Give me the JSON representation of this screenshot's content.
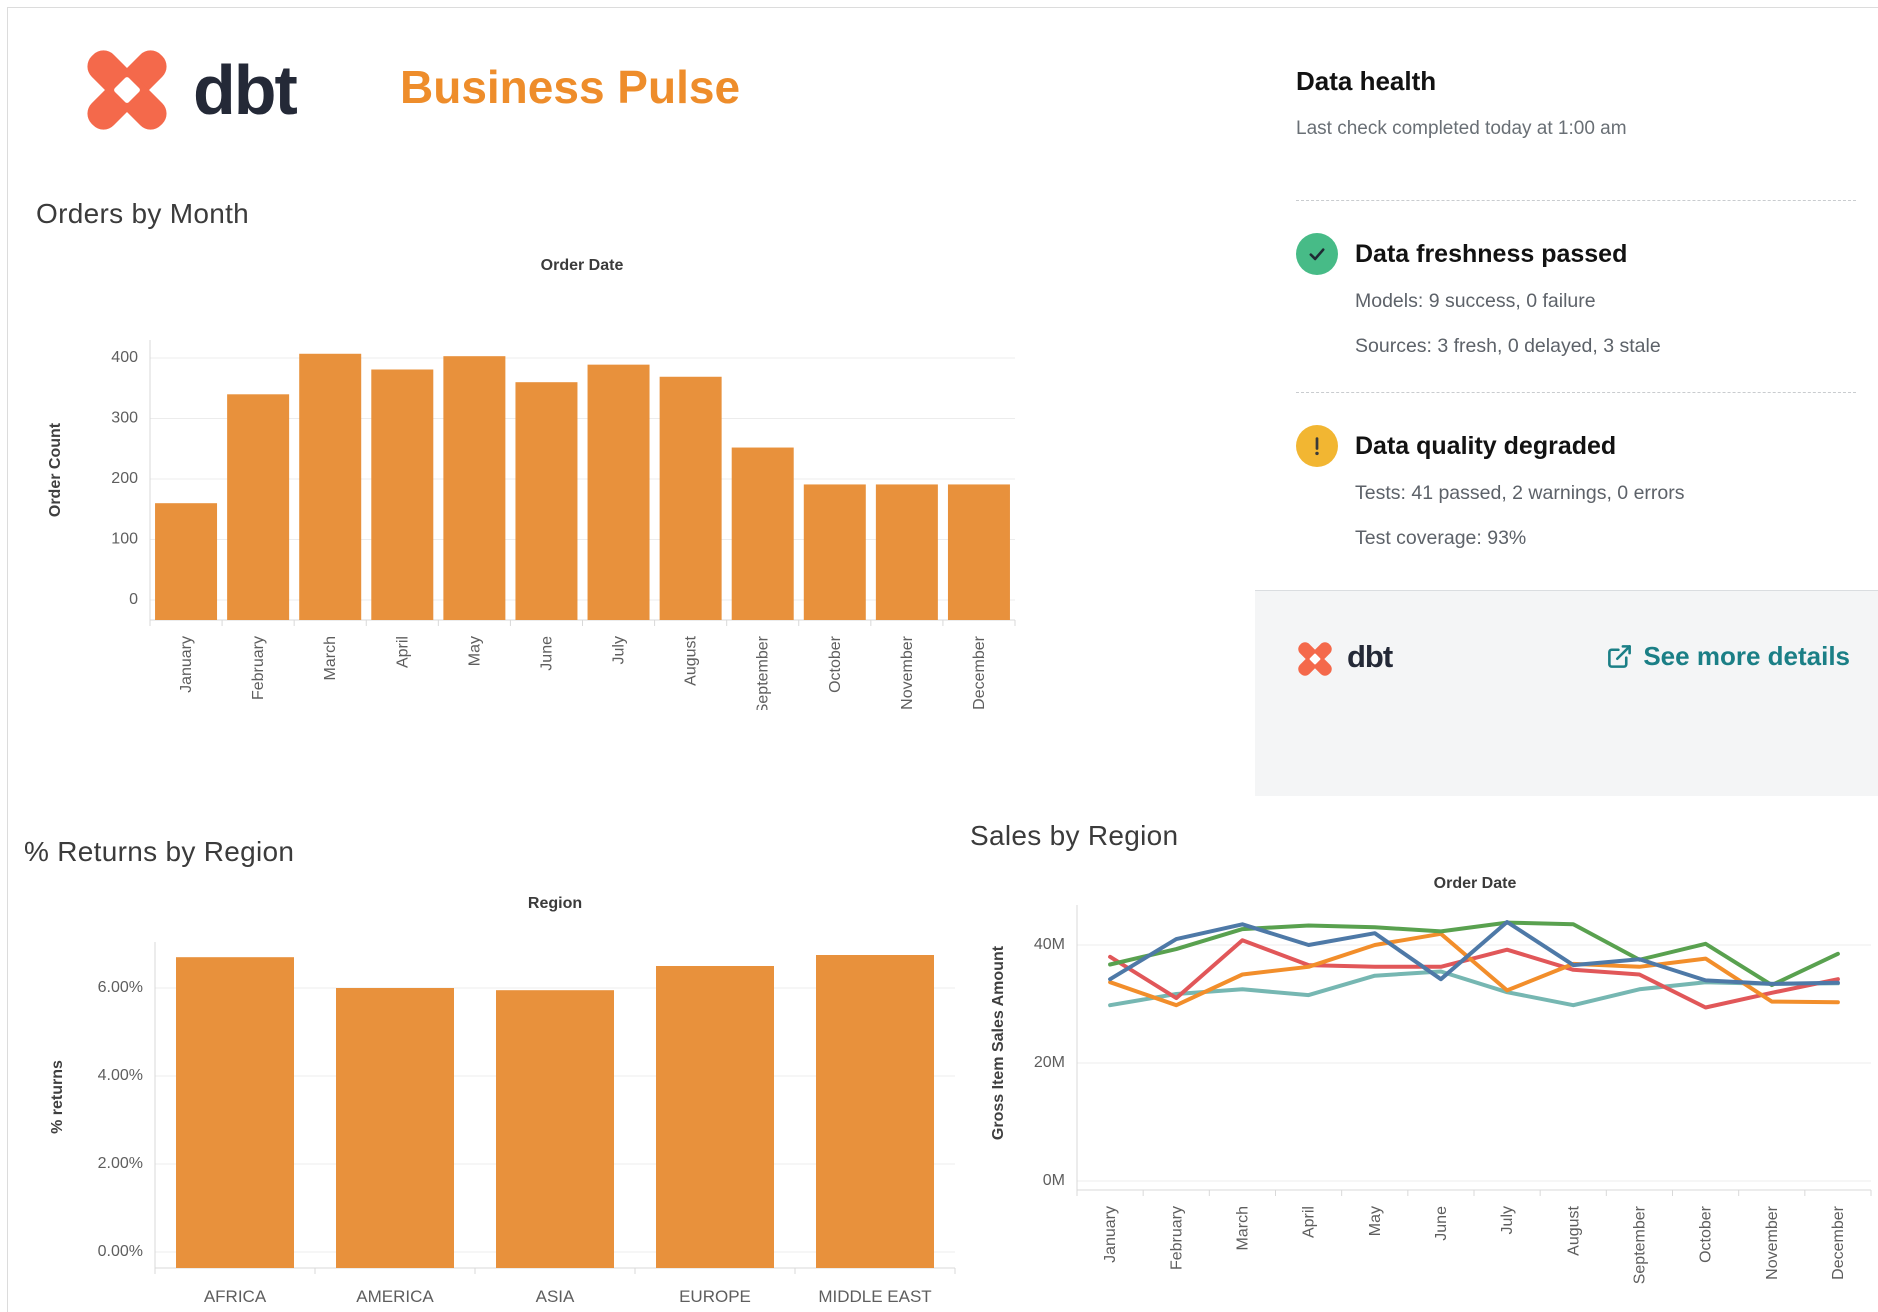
{
  "header": {
    "brand": "dbt",
    "title": "Business Pulse",
    "brand_color": "#f4694b",
    "title_color": "#ee8d2b"
  },
  "data_health": {
    "title": "Data health",
    "subtitle": "Last check completed today at 1:00 am",
    "items": [
      {
        "icon": "check",
        "status_color": "#47bb87",
        "title": "Data freshness passed",
        "lines": [
          "Models: 9 success, 0 failure",
          "Sources: 3 fresh, 0 delayed, 3 stale"
        ]
      },
      {
        "icon": "exclamation",
        "status_color": "#f2b632",
        "title": "Data quality degraded",
        "lines": [
          "Tests: 41 passed, 2 warnings, 0 errors",
          "Test coverage: 93%"
        ]
      }
    ],
    "footer": {
      "brand": "dbt",
      "link_label": "See more details",
      "link_color": "#1b7f86"
    }
  },
  "chart_data": [
    {
      "id": "orders-by-month",
      "type": "bar",
      "title": "Orders by Month",
      "axis_title": "Order Date",
      "ylabel": "Order Count",
      "categories": [
        "January",
        "February",
        "March",
        "April",
        "May",
        "June",
        "July",
        "August",
        "September",
        "October",
        "November",
        "December"
      ],
      "values": [
        160,
        340,
        407,
        381,
        403,
        360,
        389,
        369,
        252,
        191,
        191,
        191
      ],
      "bar_color": "#e8913c",
      "ylim": [
        0,
        430
      ],
      "grid": true,
      "x_labels_rotated": true,
      "y_ticks": [
        {
          "value": 0,
          "label": "0"
        },
        {
          "value": 100,
          "label": "100"
        },
        {
          "value": 200,
          "label": "200"
        },
        {
          "value": 300,
          "label": "300"
        },
        {
          "value": 400,
          "label": "400"
        }
      ]
    },
    {
      "id": "returns-by-region",
      "type": "bar",
      "title": "% Returns by Region",
      "axis_title": "Region",
      "ylabel": "% returns",
      "categories": [
        "AFRICA",
        "AMERICA",
        "ASIA",
        "EUROPE",
        "MIDDLE EAST"
      ],
      "values": [
        6.7,
        6.0,
        5.95,
        6.5,
        6.75
      ],
      "bar_color": "#e8913c",
      "ylim": [
        0,
        7.3
      ],
      "grid": true,
      "x_labels_rotated": false,
      "y_ticks": [
        {
          "value": 0,
          "label": "0.00%"
        },
        {
          "value": 2,
          "label": "2.00%"
        },
        {
          "value": 4,
          "label": "4.00%"
        },
        {
          "value": 6,
          "label": "6.00%"
        }
      ]
    },
    {
      "id": "sales-by-region",
      "type": "line",
      "title": "Sales by Region",
      "axis_title": "Order Date",
      "ylabel": "Gross Item Sales Amount",
      "unit": "M",
      "categories": [
        "January",
        "February",
        "March",
        "April",
        "May",
        "June",
        "July",
        "August",
        "September",
        "October",
        "November",
        "December"
      ],
      "series": [
        {
          "name": "teal",
          "color": "#76b7b2",
          "values": [
            29.8,
            31.7,
            32.5,
            31.5,
            34.8,
            35.5,
            32.0,
            29.8,
            32.5,
            33.7,
            33.4,
            33.5
          ]
        },
        {
          "name": "red",
          "color": "#e15759",
          "values": [
            38.0,
            31.0,
            40.8,
            36.6,
            36.3,
            36.3,
            39.2,
            35.8,
            35.0,
            29.4,
            31.9,
            34.2
          ]
        },
        {
          "name": "orange",
          "color": "#f28e2b",
          "values": [
            33.7,
            29.8,
            35.0,
            36.3,
            40.0,
            41.9,
            32.3,
            36.8,
            36.3,
            37.7,
            30.4,
            30.3
          ]
        },
        {
          "name": "green",
          "color": "#59a14f",
          "values": [
            36.7,
            39.3,
            42.7,
            43.3,
            43.0,
            42.3,
            43.8,
            43.5,
            37.5,
            40.2,
            33.2,
            38.5
          ]
        },
        {
          "name": "blue",
          "color": "#4e79a7",
          "values": [
            34.2,
            41.0,
            43.5,
            40.0,
            42.0,
            34.2,
            43.9,
            36.6,
            37.6,
            34.0,
            33.4,
            33.6
          ]
        }
      ],
      "ylim": [
        0,
        46
      ],
      "grid": true,
      "legend": "none",
      "x_labels_rotated": true,
      "y_ticks": [
        {
          "value": 0,
          "label": "0M"
        },
        {
          "value": 20,
          "label": "20M"
        },
        {
          "value": 40,
          "label": "40M"
        }
      ]
    }
  ]
}
